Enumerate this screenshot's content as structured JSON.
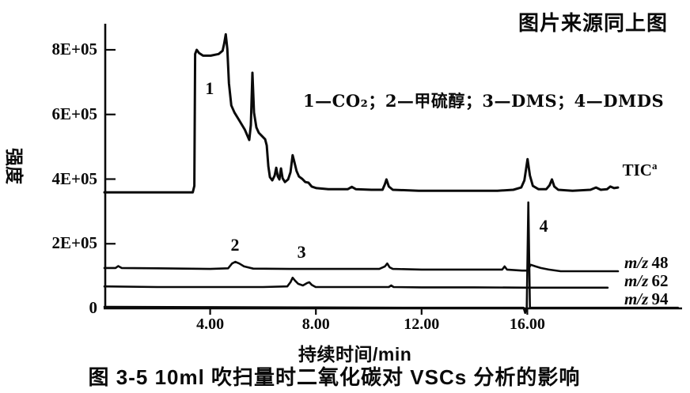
{
  "page": {
    "source_note": "图片来源同上图"
  },
  "chart_data": {
    "type": "line",
    "title": "图 3-5  10ml 吹扫量时二氧化碳对 VSCs 分析的影响",
    "xlabel": "持续时间/min",
    "ylabel": "强度",
    "xlim": [
      0,
      21.8
    ],
    "ylim": [
      0,
      8.8
    ],
    "grid": false,
    "legend_note": "1—CO₂；2—甲硫醇；3—DMS；4—DMDS",
    "x_ticks": [
      {
        "t": 4,
        "label": "4.00"
      },
      {
        "t": 8,
        "label": "8.00"
      },
      {
        "t": 12,
        "label": "12.00"
      },
      {
        "t": 16,
        "label": "16.00"
      }
    ],
    "y_ticks": [
      {
        "v": 0,
        "label": "0"
      },
      {
        "v": 2,
        "label": "2E+05"
      },
      {
        "v": 4,
        "label": "4E+05"
      },
      {
        "v": 6,
        "label": "6E+05"
      },
      {
        "v": 8,
        "label": "8E+05"
      }
    ],
    "intensity_unit_per_tick": "1E+05",
    "series": [
      {
        "id": "tic",
        "name": "TIC",
        "label": "TIC",
        "label_superscript": "a",
        "label_anchor": [
          19.6,
          4.26
        ],
        "points": [
          [
            0,
            3.59
          ],
          [
            1,
            3.59
          ],
          [
            2,
            3.59
          ],
          [
            3.34,
            3.59
          ],
          [
            3.4,
            3.79
          ],
          [
            3.43,
            7.87
          ],
          [
            3.49,
            8.0
          ],
          [
            3.58,
            7.9
          ],
          [
            3.73,
            7.82
          ],
          [
            4.02,
            7.82
          ],
          [
            4.32,
            7.87
          ],
          [
            4.47,
            7.97
          ],
          [
            4.53,
            8.19
          ],
          [
            4.59,
            8.48
          ],
          [
            4.65,
            8.02
          ],
          [
            4.71,
            6.97
          ],
          [
            4.8,
            6.28
          ],
          [
            4.92,
            6.06
          ],
          [
            5.1,
            5.82
          ],
          [
            5.31,
            5.53
          ],
          [
            5.48,
            5.21
          ],
          [
            5.54,
            5.67
          ],
          [
            5.6,
            7.29
          ],
          [
            5.66,
            6.06
          ],
          [
            5.75,
            5.6
          ],
          [
            5.84,
            5.43
          ],
          [
            5.96,
            5.33
          ],
          [
            6.08,
            5.23
          ],
          [
            6.14,
            5.04
          ],
          [
            6.2,
            4.4
          ],
          [
            6.26,
            4.06
          ],
          [
            6.35,
            3.96
          ],
          [
            6.44,
            4.11
          ],
          [
            6.5,
            4.35
          ],
          [
            6.56,
            4.08
          ],
          [
            6.62,
            3.99
          ],
          [
            6.68,
            4.33
          ],
          [
            6.74,
            4.03
          ],
          [
            6.83,
            3.91
          ],
          [
            6.95,
            3.99
          ],
          [
            7.04,
            4.21
          ],
          [
            7.12,
            4.74
          ],
          [
            7.18,
            4.55
          ],
          [
            7.27,
            4.25
          ],
          [
            7.36,
            4.08
          ],
          [
            7.48,
            4.01
          ],
          [
            7.6,
            3.91
          ],
          [
            7.72,
            3.89
          ],
          [
            7.84,
            3.77
          ],
          [
            8.02,
            3.72
          ],
          [
            8.47,
            3.69
          ],
          [
            9.21,
            3.69
          ],
          [
            9.36,
            3.76
          ],
          [
            9.51,
            3.69
          ],
          [
            10.1,
            3.67
          ],
          [
            10.52,
            3.67
          ],
          [
            10.61,
            3.84
          ],
          [
            10.67,
            3.99
          ],
          [
            10.76,
            3.77
          ],
          [
            10.91,
            3.67
          ],
          [
            11.89,
            3.64
          ],
          [
            13.38,
            3.64
          ],
          [
            14.87,
            3.64
          ],
          [
            15.47,
            3.67
          ],
          [
            15.77,
            3.74
          ],
          [
            15.89,
            3.96
          ],
          [
            16.01,
            4.62
          ],
          [
            16.1,
            4.11
          ],
          [
            16.21,
            3.79
          ],
          [
            16.42,
            3.69
          ],
          [
            16.72,
            3.69
          ],
          [
            16.84,
            3.81
          ],
          [
            16.93,
            3.99
          ],
          [
            17.02,
            3.77
          ],
          [
            17.17,
            3.67
          ],
          [
            17.71,
            3.64
          ],
          [
            18.39,
            3.67
          ],
          [
            18.6,
            3.74
          ],
          [
            18.78,
            3.67
          ],
          [
            19.02,
            3.69
          ],
          [
            19.14,
            3.77
          ],
          [
            19.28,
            3.72
          ],
          [
            19.43,
            3.74
          ]
        ]
      },
      {
        "id": "mz48",
        "name": "m/z 48",
        "label_prefix": "m/z",
        "label_value": "48",
        "label_anchor": [
          19.67,
          1.37
        ],
        "points": [
          [
            0,
            1.25
          ],
          [
            0.42,
            1.25
          ],
          [
            0.52,
            1.31
          ],
          [
            0.65,
            1.25
          ],
          [
            2,
            1.24
          ],
          [
            3,
            1.23
          ],
          [
            4,
            1.22
          ],
          [
            4.68,
            1.24
          ],
          [
            4.83,
            1.39
          ],
          [
            4.95,
            1.44
          ],
          [
            5.1,
            1.39
          ],
          [
            5.28,
            1.3
          ],
          [
            5.63,
            1.23
          ],
          [
            7,
            1.22
          ],
          [
            9,
            1.22
          ],
          [
            10.4,
            1.22
          ],
          [
            10.61,
            1.3
          ],
          [
            10.7,
            1.39
          ],
          [
            10.79,
            1.27
          ],
          [
            10.91,
            1.22
          ],
          [
            12,
            1.2
          ],
          [
            14,
            1.2
          ],
          [
            15.05,
            1.2
          ],
          [
            15.14,
            1.3
          ],
          [
            15.23,
            1.2
          ],
          [
            15.8,
            1.17
          ],
          [
            16.01,
            1.17
          ],
          [
            16.13,
            1.35
          ],
          [
            16.31,
            1.3
          ],
          [
            16.51,
            1.25
          ],
          [
            16.81,
            1.2
          ],
          [
            17.26,
            1.15
          ],
          [
            18.5,
            1.15
          ],
          [
            19.43,
            1.15
          ]
        ]
      },
      {
        "id": "mz62",
        "name": "m/z 62",
        "label_prefix": "m/z",
        "label_value": "62",
        "label_anchor": [
          19.67,
          0.81
        ],
        "points": [
          [
            0,
            0.68
          ],
          [
            2,
            0.66
          ],
          [
            4,
            0.66
          ],
          [
            6,
            0.66
          ],
          [
            6.92,
            0.68
          ],
          [
            7.04,
            0.81
          ],
          [
            7.12,
            0.95
          ],
          [
            7.21,
            0.86
          ],
          [
            7.33,
            0.76
          ],
          [
            7.51,
            0.71
          ],
          [
            7.66,
            0.78
          ],
          [
            7.75,
            0.81
          ],
          [
            7.84,
            0.73
          ],
          [
            7.99,
            0.66
          ],
          [
            9,
            0.66
          ],
          [
            10.76,
            0.66
          ],
          [
            10.85,
            0.71
          ],
          [
            10.94,
            0.66
          ],
          [
            12,
            0.65
          ],
          [
            14,
            0.65
          ],
          [
            16,
            0.64
          ],
          [
            18,
            0.64
          ],
          [
            19.04,
            0.64
          ]
        ]
      },
      {
        "id": "mz94",
        "name": "m/z 94",
        "label_prefix": "m/z",
        "label_value": "94",
        "label_anchor": [
          19.67,
          0.24
        ],
        "points": [
          [
            0,
            0.05
          ],
          [
            4,
            0.04
          ],
          [
            8,
            0.03
          ],
          [
            12,
            0.02
          ],
          [
            15.5,
            0.02
          ],
          [
            15.86,
            0.02
          ],
          [
            15.92,
            -0.14
          ],
          [
            15.98,
            0.02
          ],
          [
            16.04,
            3.28
          ],
          [
            16.1,
            0.02
          ],
          [
            18,
            0.02
          ],
          [
            21.7,
            0.02
          ]
        ]
      }
    ],
    "peak_annotations": [
      {
        "label": "1",
        "compound": "CO₂",
        "anchor": [
          3.98,
          6.78
        ]
      },
      {
        "label": "2",
        "compound": "甲硫醇",
        "anchor": [
          4.94,
          1.93
        ]
      },
      {
        "label": "3",
        "compound": "DMS",
        "anchor": [
          7.46,
          1.71
        ]
      },
      {
        "label": "4",
        "compound": "DMDS",
        "anchor": [
          16.62,
          2.52
        ]
      }
    ]
  }
}
